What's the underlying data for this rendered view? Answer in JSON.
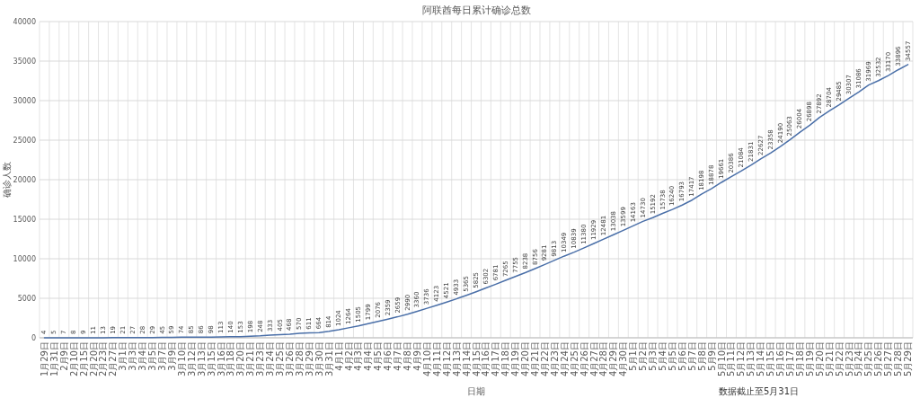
{
  "chart_data": {
    "type": "line",
    "title": "阿联酋每日累计确诊总数",
    "xlabel": "日期",
    "ylabel": "确诊人数",
    "categories": [
      "1月29日",
      "1月31日",
      "2月9日",
      "2月10日",
      "2月15日",
      "2月20日",
      "2月23日",
      "2月27日",
      "3月1日",
      "3月3日",
      "3月4日",
      "3月5日",
      "3月7日",
      "3月9日",
      "3月10日",
      "3月12日",
      "3月13日",
      "3月15日",
      "3月16日",
      "3月18日",
      "3月20日",
      "3月21日",
      "3月23日",
      "3月24日",
      "3月25日",
      "3月26日",
      "3月28日",
      "3月29日",
      "3月30日",
      "3月31日",
      "4月1日",
      "4月2日",
      "4月3日",
      "4月4日",
      "4月5日",
      "4月6日",
      "4月7日",
      "4月8日",
      "4月9日",
      "4月10日",
      "4月11日",
      "4月12日",
      "4月13日",
      "4月14日",
      "4月15日",
      "4月16日",
      "4月17日",
      "4月18日",
      "4月19日",
      "4月20日",
      "4月21日",
      "4月22日",
      "4月23日",
      "4月24日",
      "4月25日",
      "4月26日",
      "4月27日",
      "4月28日",
      "4月29日",
      "4月30日",
      "5月1日",
      "5月2日",
      "5月3日",
      "5月4日",
      "5月5日",
      "5月6日",
      "5月7日",
      "5月8日",
      "5月9日",
      "5月10日",
      "5月11日",
      "5月12日",
      "5月13日",
      "5月14日",
      "5月15日",
      "5月16日",
      "5月17日",
      "5月18日",
      "5月19日",
      "5月20日",
      "5月21日",
      "5月22日",
      "5月23日",
      "5月24日",
      "5月25日",
      "5月26日",
      "5月27日",
      "5月28日",
      "5月29日"
    ],
    "values": [
      4,
      5,
      7,
      8,
      9,
      11,
      13,
      19,
      21,
      27,
      28,
      29,
      45,
      59,
      74,
      85,
      86,
      98,
      113,
      140,
      153,
      198,
      248,
      333,
      405,
      468,
      570,
      611,
      664,
      814,
      1024,
      1264,
      1505,
      1799,
      2076,
      2359,
      2659,
      2990,
      3360,
      3736,
      4123,
      4521,
      4933,
      5365,
      5825,
      6302,
      6781,
      7265,
      7755,
      8238,
      8756,
      9281,
      9813,
      10349,
      10839,
      11380,
      11929,
      12481,
      13038,
      13599,
      14163,
      14730,
      15192,
      15738,
      16240,
      16793,
      17417,
      18198,
      18878,
      19661,
      20386,
      21084,
      21831,
      22627,
      23358,
      24190,
      25063,
      26004,
      26898,
      27892,
      28704,
      29485,
      30307,
      31086,
      31969,
      32532,
      33170,
      33896,
      34557
    ],
    "color": "#4a6fa8",
    "ylim": [
      0,
      40000
    ],
    "yticks": [
      0,
      5000,
      10000,
      15000,
      20000,
      25000,
      30000,
      35000,
      40000
    ],
    "grid": true,
    "data_labels": true,
    "marker": "none",
    "line_style": "solid",
    "annotations": [
      "数据截止至5月31日"
    ]
  }
}
